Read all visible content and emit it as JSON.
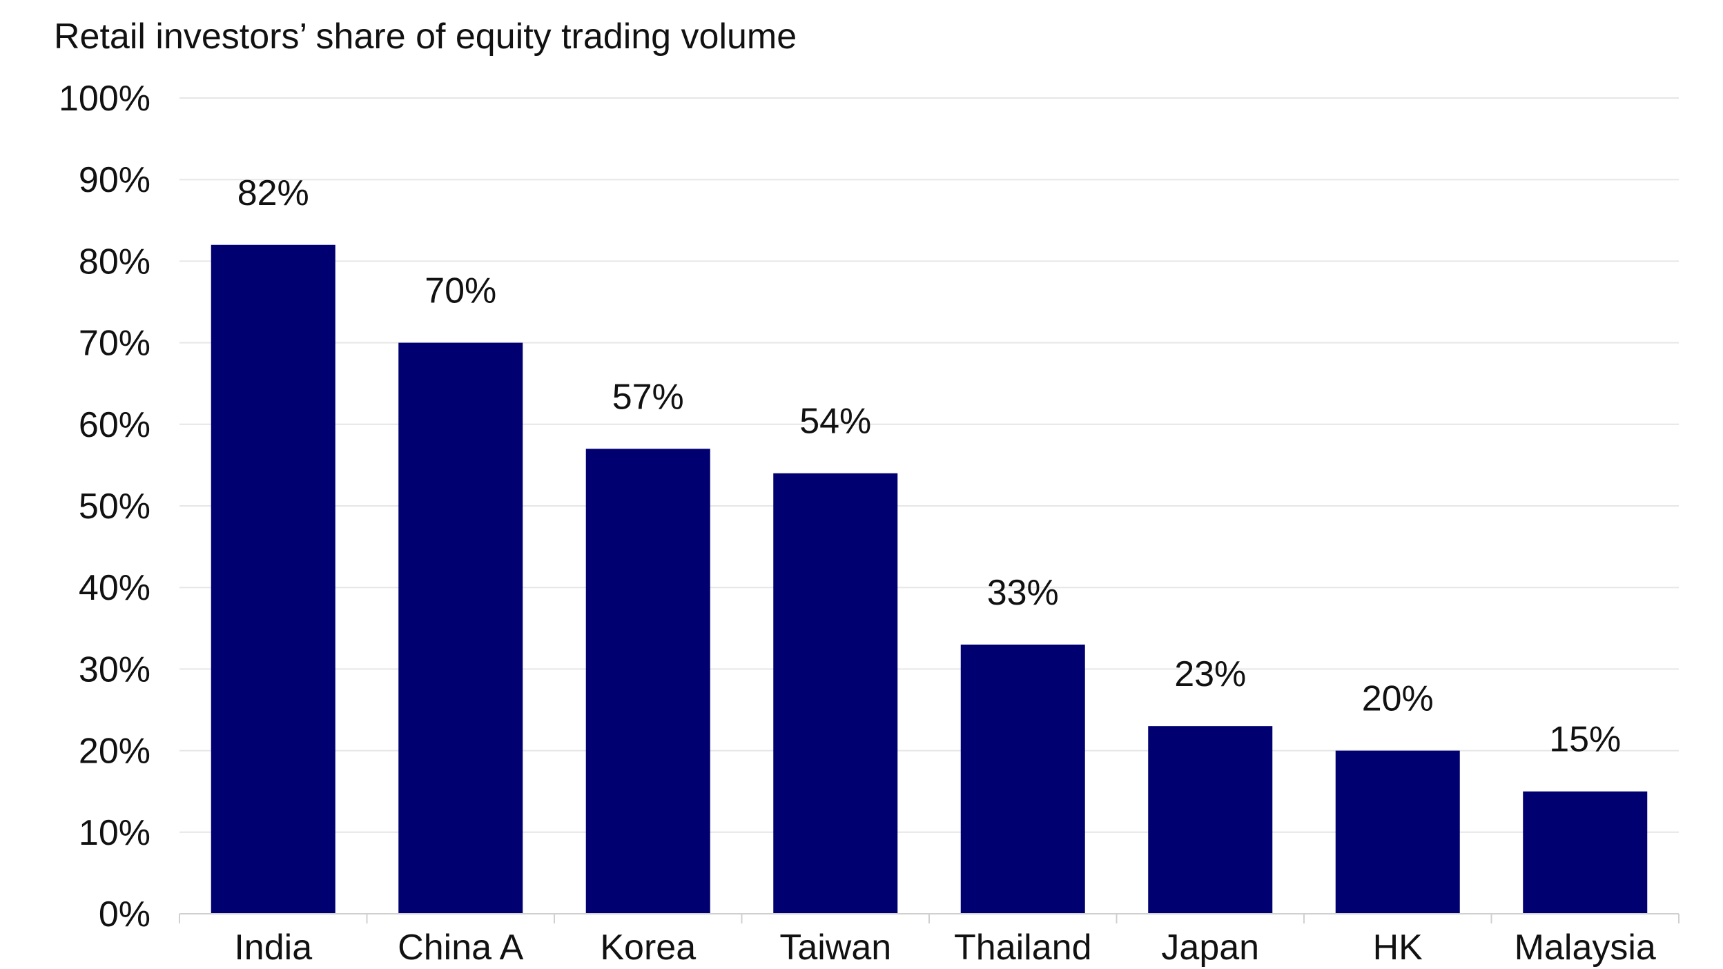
{
  "chart_data": {
    "type": "bar",
    "title": "Retail investors’ share of equity trading volume",
    "xlabel": "",
    "ylabel": "",
    "categories": [
      "India",
      "China A",
      "Korea",
      "Taiwan",
      "Thailand",
      "Japan",
      "HK",
      "Malaysia"
    ],
    "values": [
      82,
      70,
      57,
      54,
      33,
      23,
      20,
      15
    ],
    "value_labels": [
      "82%",
      "70%",
      "57%",
      "54%",
      "33%",
      "23%",
      "20%",
      "15%"
    ],
    "ylim": [
      0,
      100
    ],
    "yticks": [
      0,
      10,
      20,
      30,
      40,
      50,
      60,
      70,
      80,
      90,
      100
    ],
    "ytick_labels": [
      "0%",
      "10%",
      "20%",
      "30%",
      "40%",
      "50%",
      "60%",
      "70%",
      "80%",
      "90%",
      "100%"
    ],
    "grid": true,
    "legend": "none",
    "bar_color": "#000070",
    "grid_color": "#e6e6e6",
    "axis_color": "#d0d0d0"
  }
}
